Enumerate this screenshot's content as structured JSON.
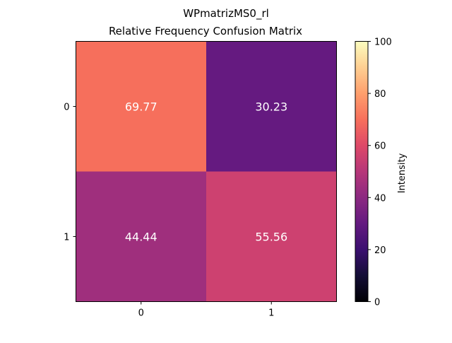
{
  "chart_data": {
    "type": "heatmap",
    "title": "WPmatrizMS0_rl",
    "subtitle": "Relative Frequency Confusion Matrix",
    "x_categories": [
      "0",
      "1"
    ],
    "y_categories": [
      "0",
      "1"
    ],
    "values": [
      [
        69.77,
        30.23
      ],
      [
        44.44,
        55.56
      ]
    ],
    "cell_labels": [
      [
        "69.77",
        "30.23"
      ],
      [
        "44.44",
        "55.56"
      ]
    ],
    "colormap": "magma",
    "value_range": [
      0,
      100
    ],
    "colorbar": {
      "label": "Intensity",
      "ticks": [
        0,
        20,
        40,
        60,
        80,
        100
      ],
      "tick_labels": [
        "0",
        "20",
        "40",
        "60",
        "80",
        "100"
      ]
    },
    "cell_text_color": "#ffffff",
    "grid": false
  }
}
